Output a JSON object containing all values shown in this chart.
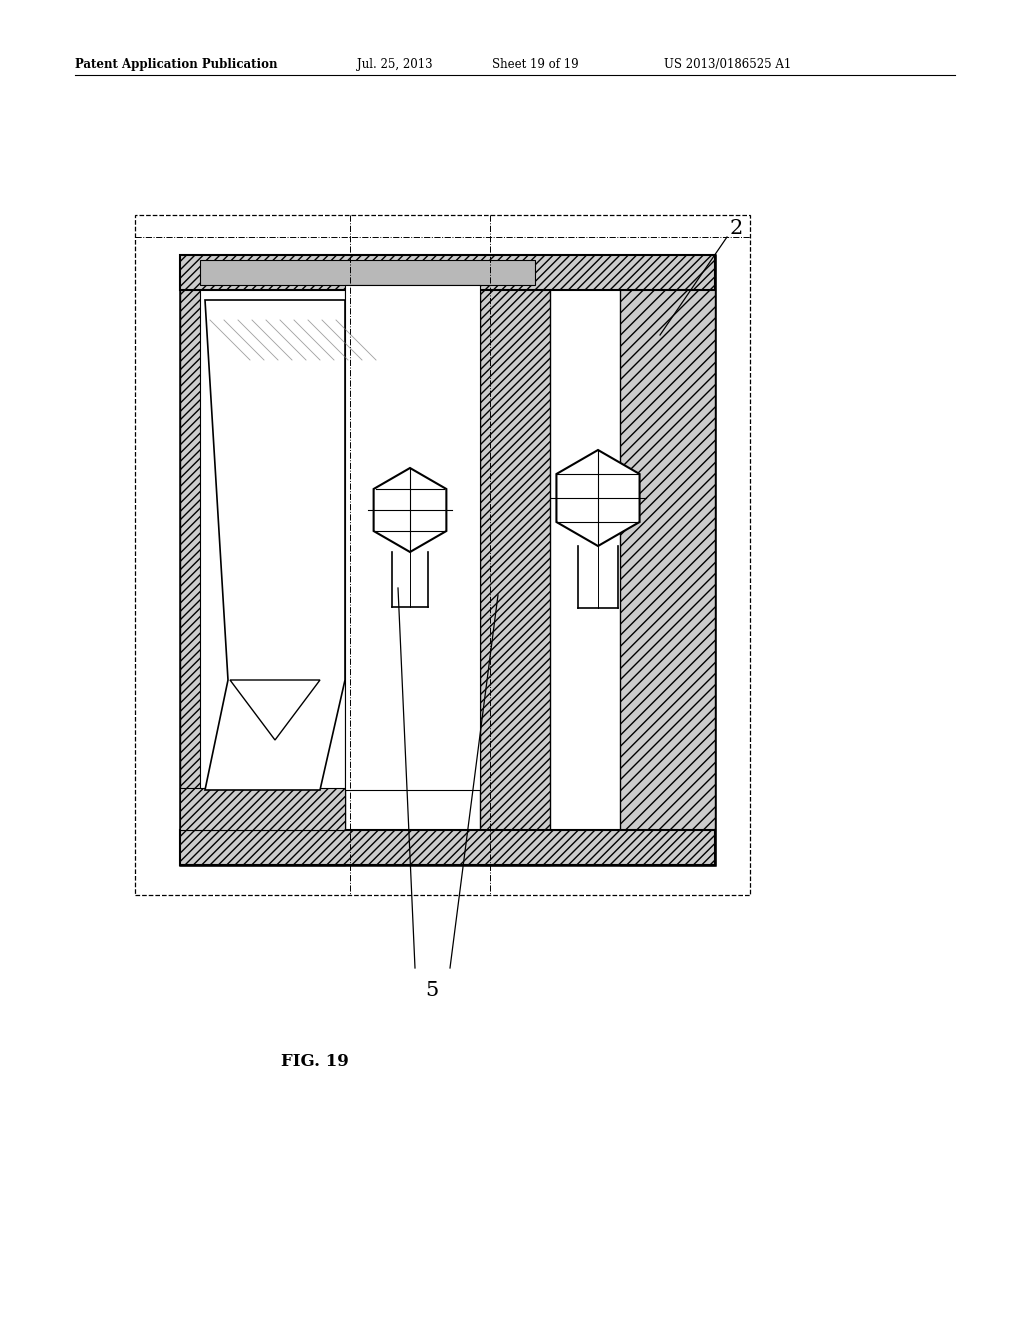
{
  "bg_color": "#ffffff",
  "header_text": "Patent Application Publication",
  "header_date": "Jul. 25, 2013",
  "header_sheet": "Sheet 19 of 19",
  "header_patent": "US 2013/0186525 A1",
  "fig_label": "FIG. 19",
  "label_2": "2",
  "label_5": "5",
  "lc": "#000000",
  "hatch_fc": "#cccccc"
}
